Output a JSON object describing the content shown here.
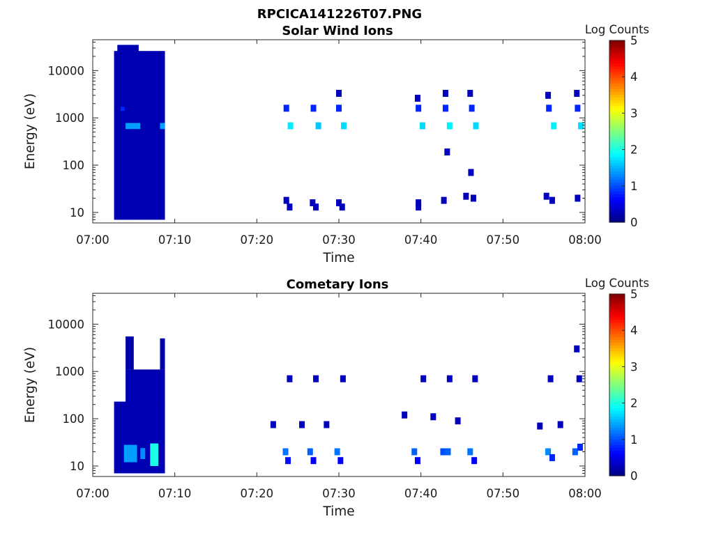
{
  "figure": {
    "title": "RPCICA141226T07.PNG",
    "background": "#ffffff"
  },
  "chart_data": [
    {
      "type": "heatmap",
      "title": "Solar Wind Ions",
      "xlabel": "Time",
      "ylabel": "Energy (eV)",
      "yscale": "log",
      "xlim": [
        "07:00",
        "08:00"
      ],
      "ylim": [
        6,
        45000
      ],
      "xticks": [
        "07:00",
        "07:10",
        "07:20",
        "07:30",
        "07:40",
        "07:50",
        "08:00"
      ],
      "yticks": [
        10,
        100,
        1000,
        10000
      ],
      "ytick_labels": [
        "10",
        "100",
        "1000",
        "10000"
      ],
      "colorbar": {
        "label": "Log Counts",
        "range": [
          0,
          5
        ],
        "ticks": [
          "0",
          "1",
          "2",
          "3",
          "4",
          "5"
        ],
        "colormap": "jet"
      },
      "blocks": [
        {
          "t0": 2.6,
          "t1": 8.8,
          "e0": 7,
          "e1": 26000,
          "v": 0.25
        },
        {
          "t0": 3.0,
          "t1": 5.6,
          "e0": 7,
          "e1": 35000,
          "v": 0.25
        },
        {
          "t0": 4.0,
          "t1": 5.8,
          "e0": 580,
          "e1": 780,
          "v": 1.4
        },
        {
          "t0": 8.2,
          "t1": 8.8,
          "e0": 580,
          "e1": 780,
          "v": 1.4
        },
        {
          "t0": 3.4,
          "t1": 3.9,
          "e0": 1400,
          "e1": 1700,
          "v": 0.8
        }
      ],
      "spots": [
        {
          "t": 23.6,
          "e": 1600,
          "v": 0.8
        },
        {
          "t": 24.1,
          "e": 680,
          "v": 1.8
        },
        {
          "t": 26.9,
          "e": 1600,
          "v": 0.8
        },
        {
          "t": 27.5,
          "e": 680,
          "v": 1.6
        },
        {
          "t": 30.0,
          "e": 3300,
          "v": 0.3
        },
        {
          "t": 30.0,
          "e": 1600,
          "v": 0.8
        },
        {
          "t": 30.6,
          "e": 680,
          "v": 1.7
        },
        {
          "t": 39.6,
          "e": 2600,
          "v": 0.3
        },
        {
          "t": 39.7,
          "e": 1600,
          "v": 0.8
        },
        {
          "t": 40.2,
          "e": 680,
          "v": 1.7
        },
        {
          "t": 43.0,
          "e": 3300,
          "v": 0.3
        },
        {
          "t": 43.0,
          "e": 1600,
          "v": 0.8
        },
        {
          "t": 43.5,
          "e": 680,
          "v": 1.8
        },
        {
          "t": 46.0,
          "e": 3300,
          "v": 0.3
        },
        {
          "t": 46.2,
          "e": 1600,
          "v": 0.8
        },
        {
          "t": 46.7,
          "e": 680,
          "v": 1.7
        },
        {
          "t": 43.2,
          "e": 190,
          "v": 0.3
        },
        {
          "t": 46.1,
          "e": 70,
          "v": 0.3
        },
        {
          "t": 55.5,
          "e": 3000,
          "v": 0.3
        },
        {
          "t": 55.6,
          "e": 1600,
          "v": 0.8
        },
        {
          "t": 56.2,
          "e": 680,
          "v": 1.8
        },
        {
          "t": 59.0,
          "e": 3300,
          "v": 0.3
        },
        {
          "t": 59.1,
          "e": 1600,
          "v": 0.8
        },
        {
          "t": 59.5,
          "e": 680,
          "v": 1.7
        },
        {
          "t": 23.6,
          "e": 18,
          "v": 0.3
        },
        {
          "t": 24.0,
          "e": 13,
          "v": 0.3
        },
        {
          "t": 26.8,
          "e": 16,
          "v": 0.3
        },
        {
          "t": 27.2,
          "e": 13,
          "v": 0.3
        },
        {
          "t": 30.0,
          "e": 16,
          "v": 0.3
        },
        {
          "t": 30.4,
          "e": 13,
          "v": 0.3
        },
        {
          "t": 39.7,
          "e": 16,
          "v": 0.3
        },
        {
          "t": 39.7,
          "e": 13,
          "v": 0.3
        },
        {
          "t": 42.8,
          "e": 18,
          "v": 0.3
        },
        {
          "t": 45.5,
          "e": 22,
          "v": 0.3
        },
        {
          "t": 46.4,
          "e": 20,
          "v": 0.3
        },
        {
          "t": 55.3,
          "e": 22,
          "v": 0.3
        },
        {
          "t": 56.0,
          "e": 18,
          "v": 0.3
        },
        {
          "t": 59.1,
          "e": 20,
          "v": 0.3
        }
      ]
    },
    {
      "type": "heatmap",
      "title": "Cometary Ions",
      "xlabel": "Time",
      "ylabel": "Energy (eV)",
      "yscale": "log",
      "xlim": [
        "07:00",
        "08:00"
      ],
      "ylim": [
        6,
        45000
      ],
      "xticks": [
        "07:00",
        "07:10",
        "07:20",
        "07:30",
        "07:40",
        "07:50",
        "08:00"
      ],
      "yticks": [
        10,
        100,
        1000,
        10000
      ],
      "ytick_labels": [
        "10",
        "100",
        "1000",
        "10000"
      ],
      "colorbar": {
        "label": "Log Counts",
        "range": [
          0,
          5
        ],
        "ticks": [
          "0",
          "1",
          "2",
          "3",
          "4",
          "5"
        ],
        "colormap": "jet"
      },
      "blocks": [
        {
          "t0": 2.6,
          "t1": 8.8,
          "e0": 7,
          "e1": 230,
          "v": 0.25
        },
        {
          "t0": 4.0,
          "t1": 8.8,
          "e0": 200,
          "e1": 1100,
          "v": 0.25
        },
        {
          "t0": 4.0,
          "t1": 5.0,
          "e0": 1100,
          "e1": 5500,
          "v": 0.2
        },
        {
          "t0": 8.2,
          "t1": 8.8,
          "e0": 1100,
          "e1": 5000,
          "v": 0.2
        },
        {
          "t0": 3.8,
          "t1": 5.4,
          "e0": 12,
          "e1": 28,
          "v": 1.4
        },
        {
          "t0": 7.0,
          "t1": 8.0,
          "e0": 10,
          "e1": 30,
          "v": 2.0
        },
        {
          "t0": 5.8,
          "t1": 6.4,
          "e0": 14,
          "e1": 24,
          "v": 1.3
        }
      ],
      "spots": [
        {
          "t": 24.0,
          "e": 700,
          "v": 0.3
        },
        {
          "t": 27.2,
          "e": 700,
          "v": 0.3
        },
        {
          "t": 30.5,
          "e": 700,
          "v": 0.3
        },
        {
          "t": 40.3,
          "e": 700,
          "v": 0.3
        },
        {
          "t": 43.5,
          "e": 700,
          "v": 0.3
        },
        {
          "t": 46.6,
          "e": 700,
          "v": 0.3
        },
        {
          "t": 55.8,
          "e": 700,
          "v": 0.3
        },
        {
          "t": 59.3,
          "e": 700,
          "v": 0.3
        },
        {
          "t": 59.0,
          "e": 3000,
          "v": 0.3
        },
        {
          "t": 22.0,
          "e": 75,
          "v": 0.3
        },
        {
          "t": 25.5,
          "e": 75,
          "v": 0.3
        },
        {
          "t": 28.5,
          "e": 75,
          "v": 0.3
        },
        {
          "t": 38.0,
          "e": 120,
          "v": 0.3
        },
        {
          "t": 41.5,
          "e": 110,
          "v": 0.3
        },
        {
          "t": 44.5,
          "e": 90,
          "v": 0.3
        },
        {
          "t": 54.5,
          "e": 70,
          "v": 0.3
        },
        {
          "t": 57.0,
          "e": 75,
          "v": 0.3
        },
        {
          "t": 23.5,
          "e": 20,
          "v": 1.2
        },
        {
          "t": 23.8,
          "e": 13,
          "v": 0.7
        },
        {
          "t": 26.5,
          "e": 20,
          "v": 1.1
        },
        {
          "t": 26.9,
          "e": 13,
          "v": 0.6
        },
        {
          "t": 29.8,
          "e": 20,
          "v": 1.2
        },
        {
          "t": 30.2,
          "e": 13,
          "v": 0.6
        },
        {
          "t": 39.2,
          "e": 20,
          "v": 1.1
        },
        {
          "t": 39.6,
          "e": 13,
          "v": 0.6
        },
        {
          "t": 42.7,
          "e": 20,
          "v": 1.0
        },
        {
          "t": 43.3,
          "e": 20,
          "v": 1.1
        },
        {
          "t": 46.0,
          "e": 20,
          "v": 1.2
        },
        {
          "t": 46.5,
          "e": 13,
          "v": 0.6
        },
        {
          "t": 55.5,
          "e": 20,
          "v": 1.3
        },
        {
          "t": 56.0,
          "e": 15,
          "v": 0.8
        },
        {
          "t": 58.8,
          "e": 20,
          "v": 1.1
        },
        {
          "t": 59.4,
          "e": 25,
          "v": 0.8
        }
      ]
    }
  ]
}
